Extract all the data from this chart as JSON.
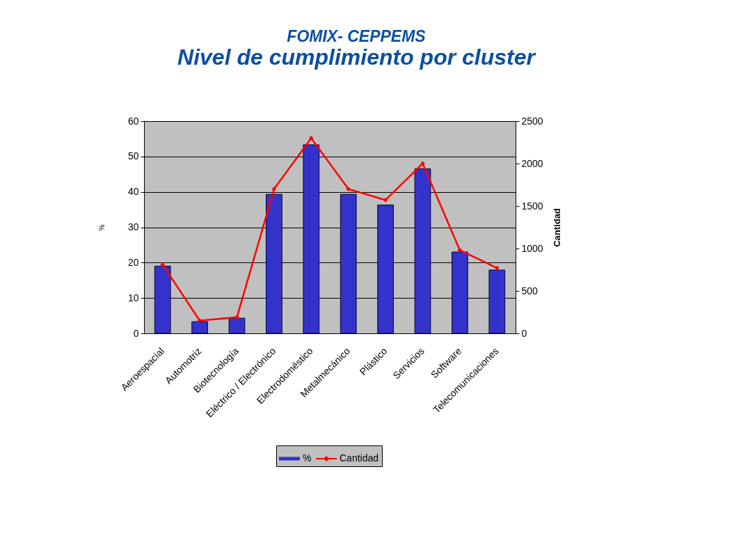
{
  "chart_data": {
    "type": "bar",
    "title": "FOMIX- CEPPEMS",
    "subtitle": "Nivel de cumplimiento por cluster",
    "ylabel": "%",
    "y2label": "Cantidad",
    "categories": [
      "Aeroespacial",
      "Automotriz",
      "Biotecnología",
      "Eléctrico / Electrónico",
      "Electrodoméstico",
      "Metalmecánico",
      "Plástico",
      "Servicios",
      "Software",
      "Telecomunicaciones"
    ],
    "series": [
      {
        "name": "%",
        "color": "#3333cc",
        "values": [
          19.0,
          3.3,
          4.3,
          39.3,
          53.3,
          39.3,
          36.3,
          46.5,
          23.0,
          17.9
        ]
      },
      {
        "name": "Cantidad",
        "type": "line",
        "axis": "y2",
        "color": "#ff0000",
        "values": [
          810,
          150,
          190,
          1700,
          2300,
          1700,
          1570,
          2000,
          980,
          770
        ]
      }
    ],
    "ylim": [
      0,
      60
    ],
    "yticks": [
      0,
      10,
      20,
      30,
      40,
      50,
      60
    ],
    "y2lim": [
      0,
      2500
    ],
    "y2ticks": [
      0,
      500,
      1000,
      1500,
      2000,
      2500
    ],
    "grid": "y",
    "legend": "bottom",
    "marker": "diamond"
  }
}
